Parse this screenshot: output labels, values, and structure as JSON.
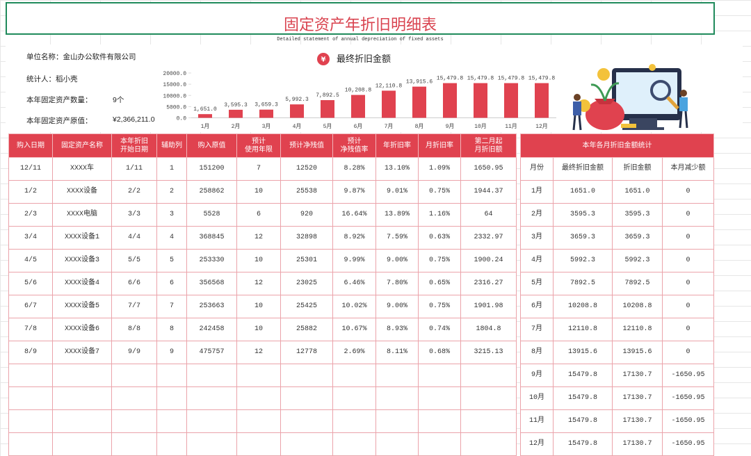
{
  "header": {
    "title": "固定资产年折旧明细表",
    "subtitle": "Detailed statement of annual depreciation of fixed assets"
  },
  "info": {
    "company": "单位名称：金山办公软件有限公司",
    "preparer": "统计人：稻小壳",
    "count_label": "本年固定资产数量：",
    "count": "9个",
    "value_label": "本年固定资产原值：",
    "value": "¥2,366,211.0"
  },
  "chart_data": {
    "type": "bar",
    "title": "最终折旧金额",
    "title_icon": "¥",
    "categories": [
      "1月",
      "2月",
      "3月",
      "4月",
      "5月",
      "6月",
      "7月",
      "8月",
      "9月",
      "10月",
      "11月",
      "12月"
    ],
    "values": [
      1651.0,
      3595.3,
      3659.3,
      5992.3,
      7892.5,
      10208.8,
      12110.8,
      13915.6,
      15479.8,
      15479.8,
      15479.8,
      15479.8
    ],
    "value_labels": [
      "1,651.0",
      "3,595.3",
      "3,659.3",
      "5,992.3",
      "7,892.5",
      "10,208.8",
      "12,110.8",
      "13,915.6",
      "15,479.8",
      "15,479.8",
      "15,479.8",
      "15,479.8"
    ],
    "color": "#e0424f",
    "ylim": [
      0,
      20000
    ],
    "yticks": [
      {
        "value": 0,
        "label": "0.0"
      },
      {
        "value": 5000,
        "label": "5000.0"
      },
      {
        "value": 10000,
        "label": "10000.0"
      },
      {
        "value": 15000,
        "label": "15000.0"
      },
      {
        "value": 20000,
        "label": "20000.0"
      }
    ]
  },
  "assets_table": {
    "columns": [
      "购入日期",
      "固定资产名称",
      "本年折旧\n开始日期",
      "辅助列",
      "购入原值",
      "预计\n使用年限",
      "预计净残值",
      "预计\n净残值率",
      "年折旧率",
      "月折旧率",
      "第二月起\n月折旧额"
    ],
    "rows": [
      [
        "12/11",
        "XXXX车",
        "1/11",
        "1",
        "151200",
        "7",
        "12520",
        "8.28%",
        "13.10%",
        "1.09%",
        "1650.95"
      ],
      [
        "1/2",
        "XXXX设备",
        "2/2",
        "2",
        "258862",
        "10",
        "25538",
        "9.87%",
        "9.01%",
        "0.75%",
        "1944.37"
      ],
      [
        "2/3",
        "XXXX电脑",
        "3/3",
        "3",
        "5528",
        "6",
        "920",
        "16.64%",
        "13.89%",
        "1.16%",
        "64"
      ],
      [
        "3/4",
        "XXXX设备1",
        "4/4",
        "4",
        "368845",
        "12",
        "32898",
        "8.92%",
        "7.59%",
        "0.63%",
        "2332.97"
      ],
      [
        "4/5",
        "XXXX设备3",
        "5/5",
        "5",
        "253330",
        "10",
        "25301",
        "9.99%",
        "9.00%",
        "0.75%",
        "1900.24"
      ],
      [
        "5/6",
        "XXXX设备4",
        "6/6",
        "6",
        "356568",
        "12",
        "23025",
        "6.46%",
        "7.80%",
        "0.65%",
        "2316.27"
      ],
      [
        "6/7",
        "XXXX设备5",
        "7/7",
        "7",
        "253663",
        "10",
        "25425",
        "10.02%",
        "9.00%",
        "0.75%",
        "1901.98"
      ],
      [
        "7/8",
        "XXXX设备6",
        "8/8",
        "8",
        "242458",
        "10",
        "25882",
        "10.67%",
        "8.93%",
        "0.74%",
        "1804.8"
      ],
      [
        "8/9",
        "XXXX设备7",
        "9/9",
        "9",
        "475757",
        "12",
        "12778",
        "2.69%",
        "8.11%",
        "0.68%",
        "3215.13"
      ]
    ]
  },
  "monthly_table": {
    "title": "本年各月折旧金额统计",
    "columns": [
      "月份",
      "最终折旧金额",
      "折旧金额",
      "本月减少额"
    ],
    "rows": [
      [
        "1月",
        "1651.0",
        "1651.0",
        "0"
      ],
      [
        "2月",
        "3595.3",
        "3595.3",
        "0"
      ],
      [
        "3月",
        "3659.3",
        "3659.3",
        "0"
      ],
      [
        "4月",
        "5992.3",
        "5992.3",
        "0"
      ],
      [
        "5月",
        "7892.5",
        "7892.5",
        "0"
      ],
      [
        "6月",
        "10208.8",
        "10208.8",
        "0"
      ],
      [
        "7月",
        "12110.8",
        "12110.8",
        "0"
      ],
      [
        "8月",
        "13915.6",
        "13915.6",
        "0"
      ],
      [
        "9月",
        "15479.8",
        "17130.7",
        "-1650.95"
      ],
      [
        "10月",
        "15479.8",
        "17130.7",
        "-1650.95"
      ],
      [
        "11月",
        "15479.8",
        "17130.7",
        "-1650.95"
      ],
      [
        "12月",
        "15479.8",
        "17130.7",
        "-1650.95"
      ]
    ]
  }
}
